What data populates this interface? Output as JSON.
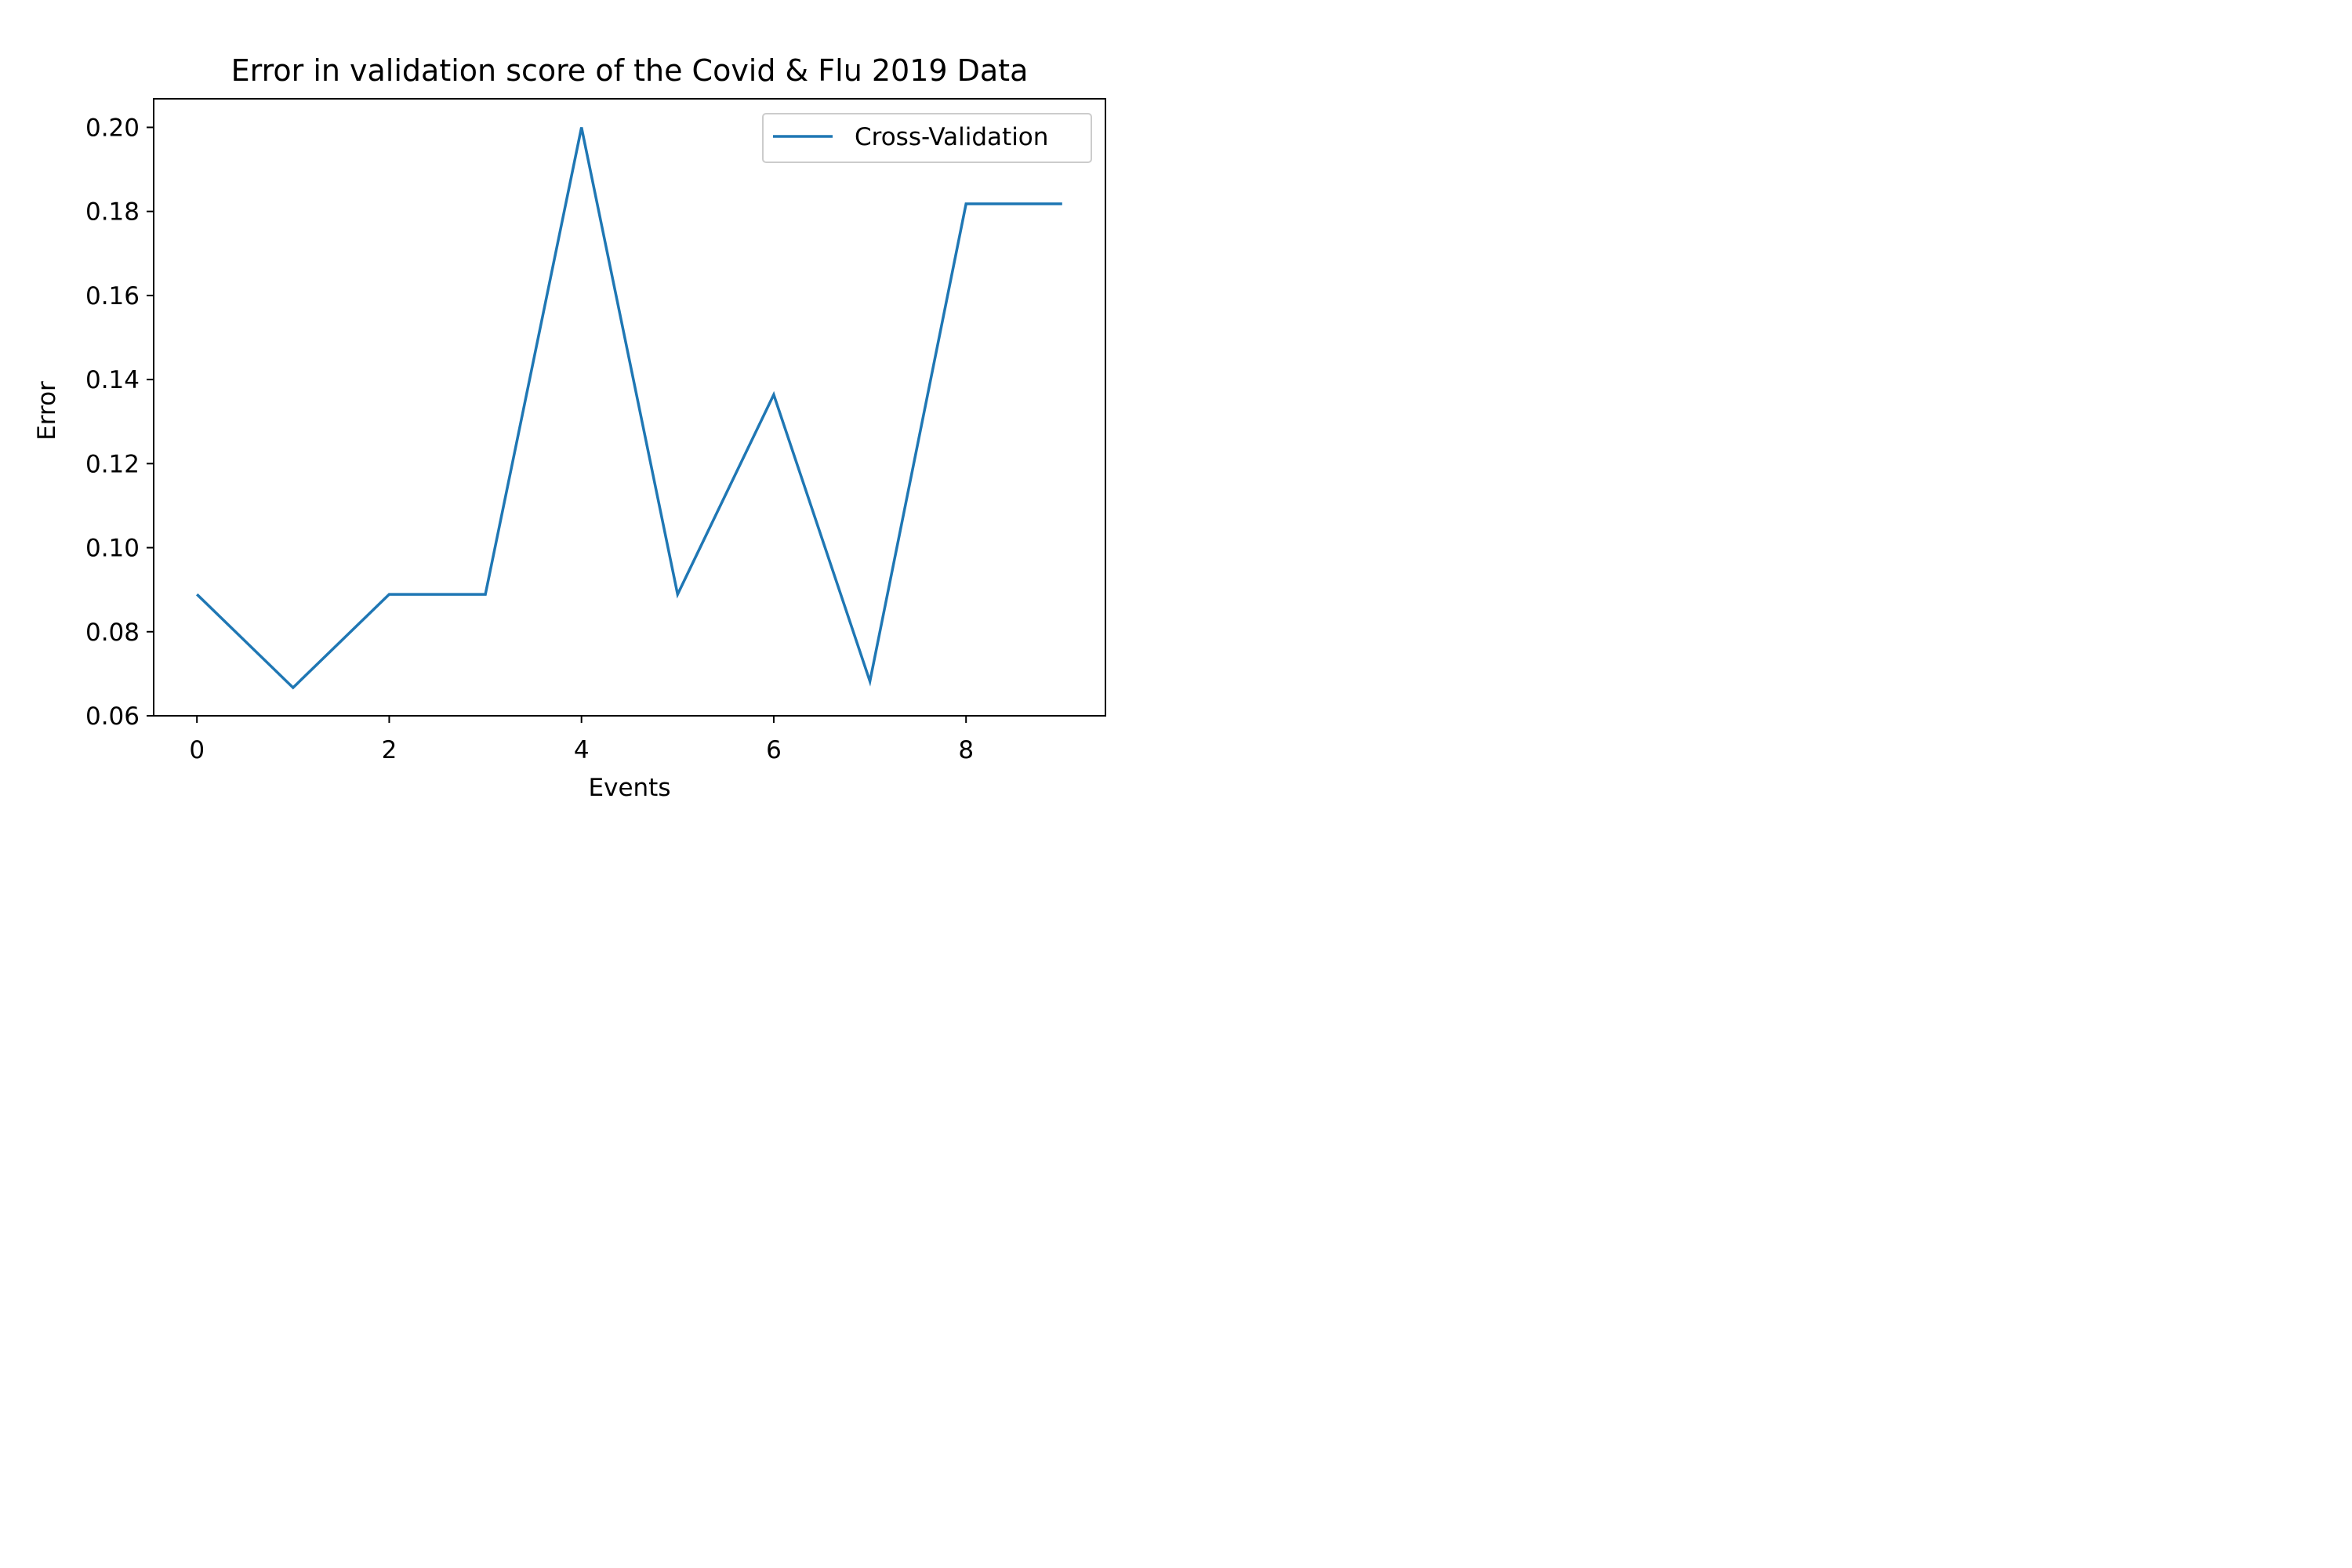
{
  "chart_data": {
    "type": "line",
    "title": "Error in validation score of the Covid & Flu 2019 Data",
    "xlabel": "Events",
    "ylabel": "Error",
    "xlim": [
      -0.45,
      9.45
    ],
    "ylim": [
      0.06,
      0.2068
    ],
    "x_ticks": [
      0,
      2,
      4,
      6,
      8
    ],
    "y_ticks": [
      0.06,
      0.08,
      0.1,
      0.12,
      0.14,
      0.16,
      0.18,
      0.2
    ],
    "x_tick_labels": [
      "0",
      "2",
      "4",
      "6",
      "8"
    ],
    "y_tick_labels": [
      "0.06",
      "0.08",
      "0.10",
      "0.12",
      "0.14",
      "0.16",
      "0.18",
      "0.20"
    ],
    "grid": false,
    "legend_position": "top-right",
    "series": [
      {
        "name": "Cross-Validation",
        "color": "#1f77b4",
        "x": [
          0,
          1,
          2,
          3,
          4,
          5,
          6,
          7,
          8,
          9
        ],
        "y": [
          0.0889,
          0.0667,
          0.0889,
          0.0889,
          0.2,
          0.0889,
          0.1364,
          0.0682,
          0.1818,
          0.1818
        ]
      }
    ]
  }
}
